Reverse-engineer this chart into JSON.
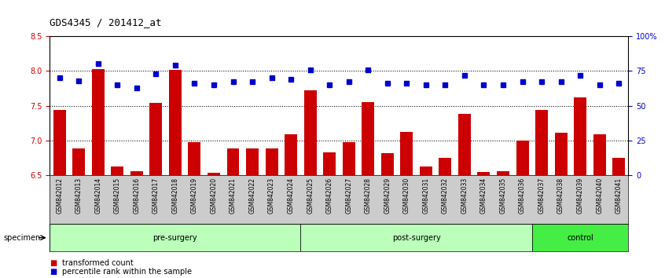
{
  "title": "GDS4345 / 201412_at",
  "categories": [
    "GSM842012",
    "GSM842013",
    "GSM842014",
    "GSM842015",
    "GSM842016",
    "GSM842017",
    "GSM842018",
    "GSM842019",
    "GSM842020",
    "GSM842021",
    "GSM842022",
    "GSM842023",
    "GSM842024",
    "GSM842025",
    "GSM842026",
    "GSM842027",
    "GSM842028",
    "GSM842029",
    "GSM842030",
    "GSM842031",
    "GSM842032",
    "GSM842033",
    "GSM842034",
    "GSM842035",
    "GSM842036",
    "GSM842037",
    "GSM842038",
    "GSM842039",
    "GSM842040",
    "GSM842041"
  ],
  "bar_values": [
    7.44,
    6.88,
    8.03,
    6.62,
    6.56,
    7.54,
    8.02,
    6.98,
    6.53,
    6.88,
    6.88,
    6.88,
    7.09,
    7.72,
    6.83,
    6.98,
    7.55,
    6.82,
    7.12,
    6.63,
    6.75,
    7.38,
    6.55,
    6.56,
    7.0,
    7.44,
    7.11,
    7.62,
    7.09,
    6.75
  ],
  "dot_percentiles": [
    70,
    68,
    80,
    65,
    63,
    73,
    79,
    66,
    65,
    67,
    67,
    70,
    69,
    76,
    65,
    67,
    76,
    66,
    66,
    65,
    65,
    72,
    65,
    65,
    67,
    67,
    67,
    72,
    65,
    66
  ],
  "bar_color": "#cc0000",
  "dot_color": "#0000cc",
  "ylim_left": [
    6.5,
    8.5
  ],
  "ylim_right": [
    0,
    100
  ],
  "yticks_left": [
    6.5,
    7.0,
    7.5,
    8.0,
    8.5
  ],
  "yticks_right": [
    0,
    25,
    50,
    75,
    100
  ],
  "ytick_labels_right": [
    "0",
    "25",
    "50",
    "75",
    "100%"
  ],
  "group_bounds": [
    [
      0,
      13,
      "pre-surgery",
      "#bbffbb"
    ],
    [
      13,
      25,
      "post-surgery",
      "#bbffbb"
    ],
    [
      25,
      30,
      "control",
      "#44ee44"
    ]
  ],
  "specimen_label": "specimen",
  "legend_bar": "transformed count",
  "legend_dot": "percentile rank within the sample",
  "background_color": "#ffffff",
  "tick_area_color": "#cccccc"
}
